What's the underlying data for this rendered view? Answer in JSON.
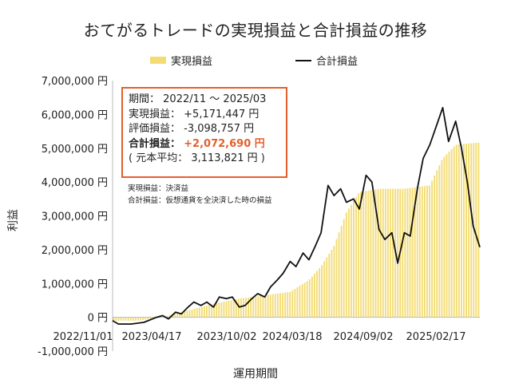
{
  "chart_data": {
    "type": "bar+line",
    "title": "おてがるトレードの実現損益と合計損益の推移",
    "xlabel": "運用期間",
    "ylabel": "利益",
    "ylim": [
      -1000000,
      7000000
    ],
    "yticks": [
      "7,000,000 円",
      "6,000,000 円",
      "5,000,000 円",
      "4,000,000 円",
      "3,000,000 円",
      "2,000,000 円",
      "1,000,000 円",
      "0 円",
      "-1,000,000 円"
    ],
    "ytick_values": [
      7000000,
      6000000,
      5000000,
      4000000,
      3000000,
      2000000,
      1000000,
      0,
      -1000000
    ],
    "xticks": [
      "2022/11/01",
      "2023/04/17",
      "2023/10/02",
      "2024/03/18",
      "2024/09/02",
      "2025/02/17"
    ],
    "legend": [
      {
        "name": "実現損益",
        "kind": "bar",
        "color": "#f3dc73"
      },
      {
        "name": "合計損益",
        "kind": "line",
        "color": "#111111"
      }
    ],
    "legend_position": "top-center",
    "grid": false,
    "x_range": [
      "2022/11/01",
      "2025/03/31"
    ],
    "series": [
      {
        "name": "実現損益",
        "kind": "bar",
        "color": "#f3dc73",
        "x": [
          "2022/11/01",
          "2023/01/01",
          "2023/03/01",
          "2023/05/01",
          "2023/07/01",
          "2023/09/01",
          "2023/11/01",
          "2024/01/01",
          "2024/02/15",
          "2024/03/15",
          "2024/04/15",
          "2024/05/15",
          "2024/06/15",
          "2024/08/01",
          "2024/10/01",
          "2024/12/01",
          "2025/01/01",
          "2025/02/01",
          "2025/03/31"
        ],
        "values": [
          -100000,
          -100000,
          0,
          200000,
          400000,
          550000,
          650000,
          750000,
          1100000,
          1500000,
          2100000,
          3100000,
          3700000,
          3800000,
          3800000,
          3900000,
          4700000,
          5100000,
          5171447
        ]
      },
      {
        "name": "合計損益",
        "kind": "line",
        "color": "#111111",
        "x": [
          "2022/11/01",
          "2022/11/15",
          "2022/12/15",
          "2023/01/15",
          "2023/02/15",
          "2023/03/01",
          "2023/03/15",
          "2023/04/01",
          "2023/04/15",
          "2023/05/01",
          "2023/05/15",
          "2023/06/01",
          "2023/06/15",
          "2023/07/01",
          "2023/07/15",
          "2023/08/01",
          "2023/08/15",
          "2023/09/01",
          "2023/09/15",
          "2023/10/01",
          "2023/10/15",
          "2023/11/01",
          "2023/11/15",
          "2023/12/01",
          "2023/12/15",
          "2024/01/01",
          "2024/01/15",
          "2024/02/01",
          "2024/02/15",
          "2024/03/01",
          "2024/03/15",
          "2024/04/01",
          "2024/04/15",
          "2024/05/01",
          "2024/05/15",
          "2024/06/01",
          "2024/06/15",
          "2024/07/01",
          "2024/07/15",
          "2024/08/01",
          "2024/08/15",
          "2024/09/01",
          "2024/09/15",
          "2024/10/01",
          "2024/10/15",
          "2024/11/01",
          "2024/11/15",
          "2024/12/01",
          "2024/12/15",
          "2025/01/01",
          "2025/01/15",
          "2025/02/01",
          "2025/02/15",
          "2025/03/01",
          "2025/03/15",
          "2025/03/31"
        ],
        "values": [
          -100000,
          -200000,
          -200000,
          -150000,
          0,
          50000,
          -50000,
          150000,
          100000,
          300000,
          450000,
          350000,
          450000,
          300000,
          600000,
          550000,
          600000,
          300000,
          350000,
          550000,
          700000,
          600000,
          900000,
          1100000,
          1300000,
          1650000,
          1500000,
          1900000,
          1700000,
          2100000,
          2500000,
          3900000,
          3600000,
          3800000,
          3400000,
          3500000,
          3200000,
          4200000,
          4000000,
          2600000,
          2300000,
          2500000,
          1600000,
          2500000,
          2400000,
          3800000,
          4700000,
          5100000,
          5600000,
          6200000,
          5200000,
          5800000,
          5000000,
          4000000,
          2700000,
          2072690
        ]
      }
    ]
  },
  "infobox": {
    "period_label": "期間：",
    "period_value": "2022/11 ～ 2025/03",
    "realized_label": "実現損益：",
    "realized_value": "+5,171,447 円",
    "unrealized_label": "評価損益：",
    "unrealized_value": "-3,098,757 円",
    "total_label": "合計損益：",
    "total_value": "+2,072,690 円",
    "principal_text": "( 元本平均： 3,113,821 円 )"
  },
  "notes": {
    "realized": "実現損益：決済益",
    "total": "合計損益：仮想通貨を全決済した時の損益"
  },
  "colors": {
    "bar": "#f3dc73",
    "line": "#111111",
    "accent": "#e2602d"
  }
}
